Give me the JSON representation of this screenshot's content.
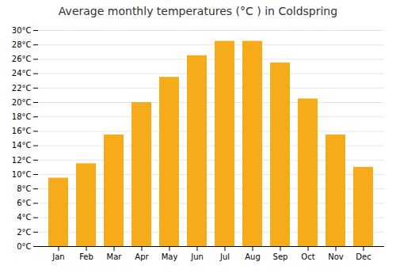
{
  "chart_data": {
    "type": "bar",
    "title": "Average monthly temperatures (°C ) in Coldspring",
    "categories": [
      "Jan",
      "Feb",
      "Mar",
      "Apr",
      "May",
      "Jun",
      "Jul",
      "Aug",
      "Sep",
      "Oct",
      "Nov",
      "Dec"
    ],
    "values": [
      9.5,
      11.5,
      15.5,
      20.0,
      23.5,
      26.5,
      28.5,
      28.5,
      25.5,
      20.5,
      15.5,
      11.0
    ],
    "color": "#F5AB1A",
    "ylim": [
      0,
      30
    ],
    "yticks": [
      {
        "value": 0,
        "label": "0°C"
      },
      {
        "value": 2,
        "label": "2°C"
      },
      {
        "value": 4,
        "label": "4°C"
      },
      {
        "value": 6,
        "label": "6°C"
      },
      {
        "value": 8,
        "label": "8°C"
      },
      {
        "value": 10,
        "label": "10°C"
      },
      {
        "value": 12,
        "label": "12°C"
      },
      {
        "value": 14,
        "label": "14°C"
      },
      {
        "value": 16,
        "label": "16°C"
      },
      {
        "value": 18,
        "label": "18°C"
      },
      {
        "value": 20,
        "label": "20°C"
      },
      {
        "value": 22,
        "label": "22°C"
      },
      {
        "value": 24,
        "label": "24°C"
      },
      {
        "value": 26,
        "label": "26°C"
      },
      {
        "value": 28,
        "label": "28°C"
      },
      {
        "value": 30,
        "label": "30°C"
      }
    ],
    "grid": true
  }
}
